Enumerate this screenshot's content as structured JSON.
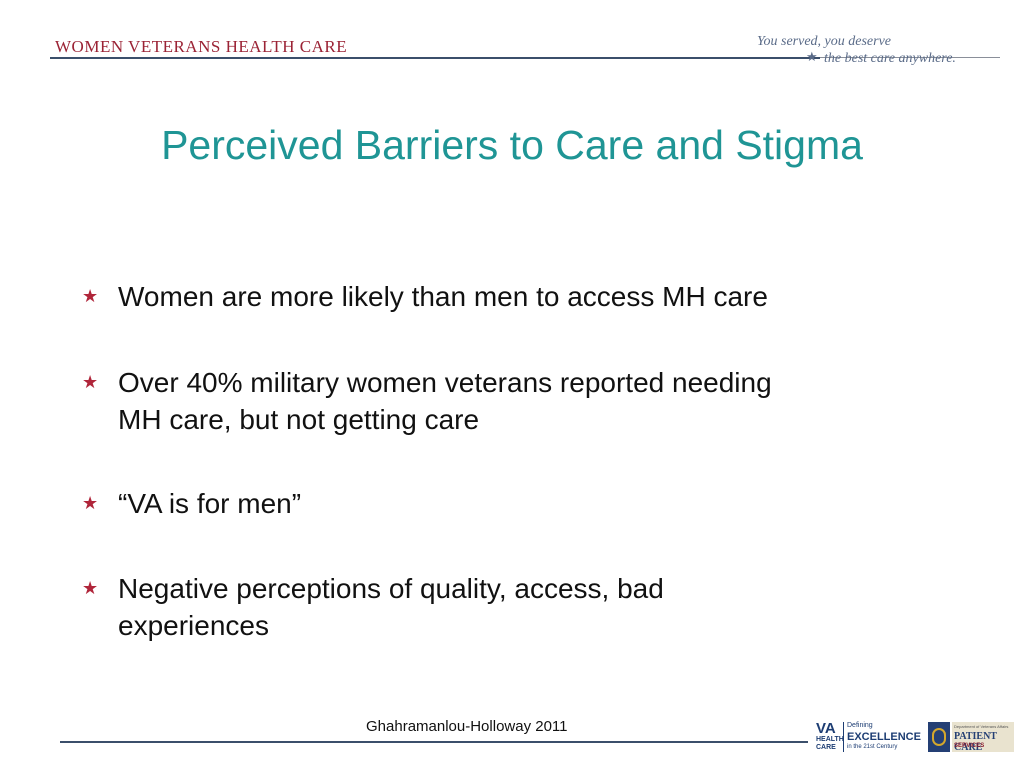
{
  "header": {
    "brand": "WOMEN VETERANS HEALTH CARE",
    "tagline_line1": "You served, you deserve",
    "tagline_line2": "the best care anywhere.",
    "tagline_icon": "star-icon"
  },
  "slide": {
    "title": "Perceived Barriers to Care and Stigma",
    "bullets": [
      {
        "lines": [
          "Women are more likely than men to access MH care"
        ]
      },
      {
        "lines": [
          "Over 40% military women veterans reported needing",
          "MH care, but not getting care"
        ]
      },
      {
        "lines": [
          "“VA is for men”"
        ]
      },
      {
        "lines": [
          "Negative perceptions of quality, access, bad",
          "experiences"
        ]
      }
    ],
    "bullet_icon": "star-icon"
  },
  "footer": {
    "citation": "Ghahramanlou-Holloway  2011",
    "va_logo": {
      "mark": "VA",
      "sub": "HEALTH CARE",
      "defining": "Defining",
      "excellence": "EXCELLENCE",
      "century": "in the 21st Century"
    },
    "pcs_logo": {
      "small": "Department of Veterans Affairs",
      "title": "PATIENT CARE",
      "services": "SERVICES"
    }
  },
  "colors": {
    "title": "#1f9595",
    "brand": "#9b2335",
    "bullet_star": "#b0253a",
    "rule": "#3b4f6b"
  }
}
